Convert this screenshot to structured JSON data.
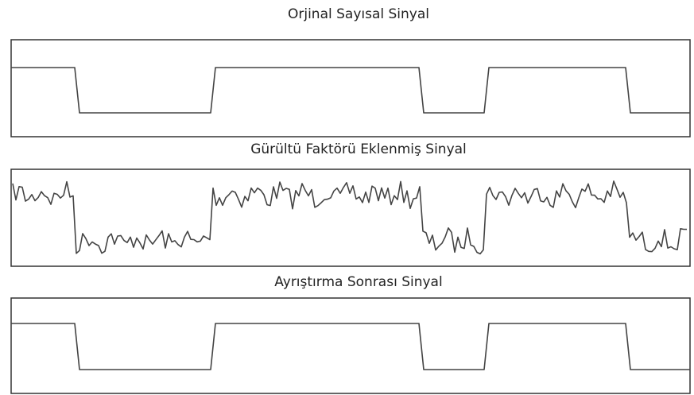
{
  "panels": [
    {
      "title": "Orjinal Sayısal Sinyal"
    },
    {
      "title": "Gürültü Faktörü Eklenmiş Sinyal"
    },
    {
      "title": "Ayrıştırma Sonrası Sinyal"
    }
  ]
}
